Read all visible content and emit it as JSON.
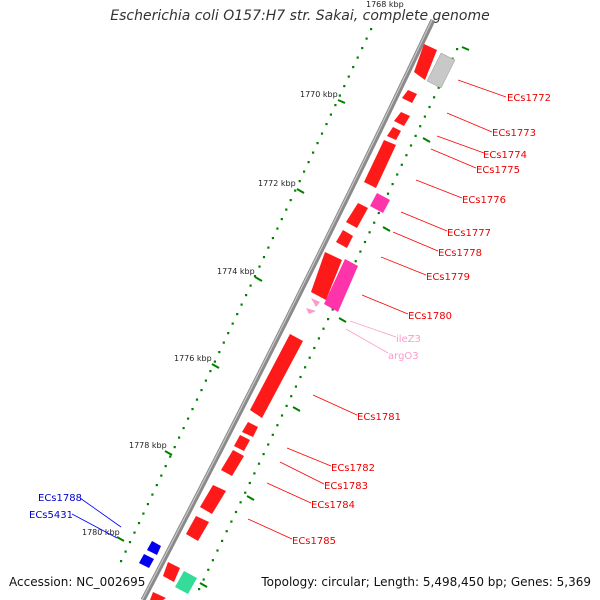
{
  "title": "Escherichia coli O157:H7 str. Sakai, complete genome",
  "footer": {
    "accession": "Accession: NC_002695",
    "topology": "Topology: circular; Length: 5,498,450 bp; Genes: 5,369"
  },
  "colors": {
    "backbone": "#808080",
    "cds": "#ff0000",
    "pseudo": "#c0c0c0",
    "magenta": "#ff3399",
    "trna": "#ff99cc",
    "blue": "#0000ff",
    "teal": "#33cc99",
    "tick": "#008000"
  },
  "ticks": {
    "top_partial": "1768 kbp",
    "labels": [
      "1770 kbp",
      "1772 kbp",
      "1774 kbp",
      "1776 kbp",
      "1778 kbp",
      "1780 kbp"
    ]
  },
  "genes_right": [
    {
      "name": "ECs1772",
      "color": "#ff0000"
    },
    {
      "name": "ECs1773",
      "color": "#ff0000"
    },
    {
      "name": "ECs1774",
      "color": "#ff0000"
    },
    {
      "name": "ECs1775",
      "color": "#ff0000"
    },
    {
      "name": "ECs1776",
      "color": "#ff0000"
    },
    {
      "name": "ECs1777",
      "color": "#ff0000"
    },
    {
      "name": "ECs1778",
      "color": "#ff0000"
    },
    {
      "name": "ECs1779",
      "color": "#ff0000"
    },
    {
      "name": "ECs1780",
      "color": "#ff0000"
    },
    {
      "name": "ileZ3",
      "color": "#ff99cc"
    },
    {
      "name": "argO3",
      "color": "#ff99cc"
    },
    {
      "name": "ECs1781",
      "color": "#ff0000"
    },
    {
      "name": "ECs1782",
      "color": "#ff0000"
    },
    {
      "name": "ECs1783",
      "color": "#ff0000"
    },
    {
      "name": "ECs1784",
      "color": "#ff0000"
    },
    {
      "name": "ECs1785",
      "color": "#ff0000"
    }
  ],
  "genes_left": [
    {
      "name": "ECs1788",
      "color": "#0000ff"
    },
    {
      "name": "ECs5431",
      "color": "#0000ff"
    }
  ]
}
